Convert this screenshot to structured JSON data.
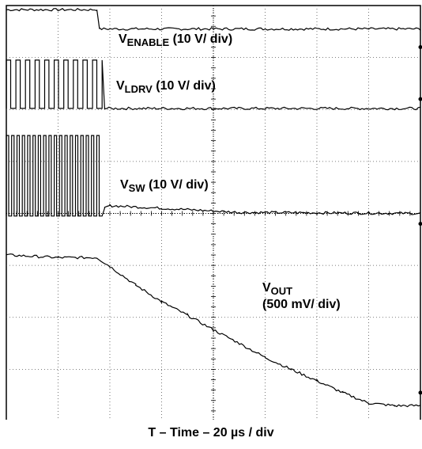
{
  "chart_data": {
    "type": "line",
    "title": "",
    "xlabel": "T – Time – 20 µs / div",
    "ylabel": "",
    "grid": true,
    "x_divisions": 8,
    "y_divisions": 8,
    "x_unit_per_div": "20 µs",
    "series": [
      {
        "label_main": "V",
        "label_sub": "ENABLE",
        "label_scale": "(10 V/ div)",
        "scale": "10 V/ div",
        "x_us": [
          0,
          35,
          36,
          160
        ],
        "y_div": [
          7.92,
          7.92,
          7.55,
          7.55
        ]
      },
      {
        "label_main": "V",
        "label_sub": "LDRV",
        "label_scale": "(10 V/ div)",
        "scale": "10 V/ div",
        "x_us": [
          0,
          37,
          38,
          160
        ],
        "y_div": [
          6.95,
          6.95,
          6.02,
          6.02
        ],
        "switching": {
          "from_us": 0,
          "to_us": 37,
          "pulses": 10,
          "high_div": 6.95,
          "low_div": 6.02
        }
      },
      {
        "label_main": "V",
        "label_sub": "SW",
        "label_scale": "(10 V/ div)",
        "scale": "10 V/ div",
        "x_us": [
          0,
          37,
          38,
          40,
          60,
          90,
          160
        ],
        "y_div": [
          3.95,
          3.95,
          4.1,
          4.15,
          4.1,
          4.02,
          4.0
        ],
        "switching": {
          "from_us": 0,
          "to_us": 37,
          "pulses": 18,
          "high_div": 5.5,
          "low_div": 3.95
        }
      },
      {
        "label_main": "V",
        "label_sub": "OUT",
        "label_scale": "(500 mV/ div)",
        "scale": "500 mV/ div",
        "x_us": [
          0,
          20,
          35,
          40,
          50,
          60,
          70,
          80,
          90,
          100,
          110,
          120,
          130,
          140,
          150,
          160
        ],
        "y_div": [
          3.2,
          3.15,
          3.15,
          2.98,
          2.62,
          2.3,
          2.04,
          1.76,
          1.5,
          1.23,
          1.0,
          0.78,
          0.55,
          0.35,
          0.3,
          0.3
        ]
      }
    ],
    "ground_markers_y_div": [
      7.2,
      6.2,
      3.8,
      0.55
    ]
  }
}
